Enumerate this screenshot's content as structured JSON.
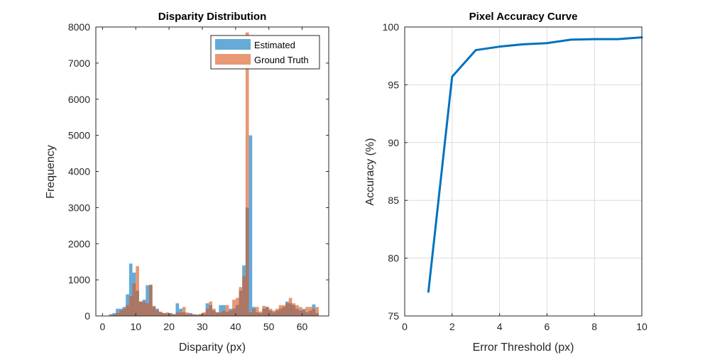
{
  "chart_data": [
    {
      "type": "bar",
      "subtype": "overlaid-histogram",
      "title": "Disparity Distribution",
      "xlabel": "Disparity (px)",
      "ylabel": "Frequency",
      "xlim": [
        -2,
        68
      ],
      "ylim": [
        0,
        8000
      ],
      "xticks": [
        0,
        10,
        20,
        30,
        40,
        50,
        60
      ],
      "yticks": [
        0,
        1000,
        2000,
        3000,
        4000,
        5000,
        6000,
        7000,
        8000
      ],
      "bin_width": 1,
      "grid": false,
      "legend": "top-right",
      "series": [
        {
          "name": "Estimated",
          "color": "#0072BD",
          "bins": [
            [
              2.5,
              50
            ],
            [
              3.5,
              80
            ],
            [
              4.5,
              200
            ],
            [
              5.5,
              200
            ],
            [
              6.5,
              250
            ],
            [
              7.5,
              600
            ],
            [
              8.5,
              1450
            ],
            [
              9.5,
              1200
            ],
            [
              10.5,
              700
            ],
            [
              11.5,
              400
            ],
            [
              12.5,
              450
            ],
            [
              13.5,
              850
            ],
            [
              14.5,
              850
            ],
            [
              15.5,
              250
            ],
            [
              16.5,
              200
            ],
            [
              17.5,
              100
            ],
            [
              18.5,
              80
            ],
            [
              19.5,
              60
            ],
            [
              20.5,
              80
            ],
            [
              21.5,
              50
            ],
            [
              22.5,
              350
            ],
            [
              23.5,
              200
            ],
            [
              24.5,
              100
            ],
            [
              25.5,
              50
            ],
            [
              26.5,
              80
            ],
            [
              27.5,
              50
            ],
            [
              28.5,
              30
            ],
            [
              29.5,
              40
            ],
            [
              30.5,
              60
            ],
            [
              31.5,
              350
            ],
            [
              32.5,
              300
            ],
            [
              33.5,
              150
            ],
            [
              34.5,
              100
            ],
            [
              35.5,
              300
            ],
            [
              36.5,
              300
            ],
            [
              37.5,
              120
            ],
            [
              38.5,
              200
            ],
            [
              39.5,
              200
            ],
            [
              40.5,
              300
            ],
            [
              41.5,
              700
            ],
            [
              42.5,
              1400
            ],
            [
              43.5,
              3000
            ],
            [
              44.5,
              5000
            ],
            [
              45.5,
              250
            ],
            [
              46.5,
              100
            ],
            [
              47.5,
              80
            ],
            [
              48.5,
              200
            ],
            [
              49.5,
              250
            ],
            [
              50.5,
              150
            ],
            [
              51.5,
              100
            ],
            [
              52.5,
              150
            ],
            [
              53.5,
              200
            ],
            [
              54.5,
              250
            ],
            [
              55.5,
              400
            ],
            [
              56.5,
              350
            ],
            [
              57.5,
              300
            ],
            [
              58.5,
              200
            ],
            [
              59.5,
              150
            ],
            [
              60.5,
              200
            ],
            [
              61.5,
              100
            ],
            [
              62.5,
              150
            ],
            [
              63.5,
              320
            ],
            [
              64.5,
              80
            ]
          ]
        },
        {
          "name": "Ground Truth",
          "color": "#D95319",
          "bins": [
            [
              2.5,
              20
            ],
            [
              3.5,
              40
            ],
            [
              4.5,
              80
            ],
            [
              5.5,
              150
            ],
            [
              6.5,
              200
            ],
            [
              7.5,
              300
            ],
            [
              8.5,
              550
            ],
            [
              9.5,
              900
            ],
            [
              10.5,
              1380
            ],
            [
              11.5,
              400
            ],
            [
              12.5,
              400
            ],
            [
              13.5,
              350
            ],
            [
              14.5,
              870
            ],
            [
              15.5,
              280
            ],
            [
              16.5,
              150
            ],
            [
              17.5,
              120
            ],
            [
              18.5,
              80
            ],
            [
              19.5,
              100
            ],
            [
              20.5,
              60
            ],
            [
              21.5,
              50
            ],
            [
              22.5,
              100
            ],
            [
              23.5,
              100
            ],
            [
              24.5,
              250
            ],
            [
              25.5,
              100
            ],
            [
              26.5,
              60
            ],
            [
              27.5,
              40
            ],
            [
              28.5,
              40
            ],
            [
              29.5,
              60
            ],
            [
              30.5,
              100
            ],
            [
              31.5,
              200
            ],
            [
              32.5,
              400
            ],
            [
              33.5,
              200
            ],
            [
              34.5,
              100
            ],
            [
              35.5,
              100
            ],
            [
              36.5,
              150
            ],
            [
              37.5,
              300
            ],
            [
              38.5,
              150
            ],
            [
              39.5,
              450
            ],
            [
              40.5,
              500
            ],
            [
              41.5,
              800
            ],
            [
              42.5,
              1100
            ],
            [
              43.5,
              7850
            ],
            [
              44.5,
              100
            ],
            [
              45.5,
              200
            ],
            [
              46.5,
              250
            ],
            [
              47.5,
              120
            ],
            [
              48.5,
              280
            ],
            [
              49.5,
              250
            ],
            [
              50.5,
              200
            ],
            [
              51.5,
              150
            ],
            [
              52.5,
              200
            ],
            [
              53.5,
              300
            ],
            [
              54.5,
              300
            ],
            [
              55.5,
              350
            ],
            [
              56.5,
              500
            ],
            [
              57.5,
              350
            ],
            [
              58.5,
              300
            ],
            [
              59.5,
              250
            ],
            [
              60.5,
              150
            ],
            [
              61.5,
              250
            ],
            [
              62.5,
              250
            ],
            [
              63.5,
              200
            ],
            [
              64.5,
              250
            ]
          ]
        }
      ]
    },
    {
      "type": "line",
      "title": "Pixel Accuracy Curve",
      "xlabel": "Error Threshold (px)",
      "ylabel": "Accuracy (%)",
      "xlim": [
        0,
        10
      ],
      "ylim": [
        75,
        100
      ],
      "xticks": [
        0,
        2,
        4,
        6,
        8,
        10
      ],
      "yticks": [
        75,
        80,
        85,
        90,
        95,
        100
      ],
      "grid": true,
      "series": [
        {
          "color": "#0072BD",
          "x": [
            1,
            2,
            3,
            4,
            5,
            6,
            7,
            8,
            9,
            10
          ],
          "y": [
            77.1,
            95.7,
            98.0,
            98.3,
            98.5,
            98.6,
            98.9,
            98.95,
            98.95,
            99.1
          ]
        }
      ]
    }
  ]
}
